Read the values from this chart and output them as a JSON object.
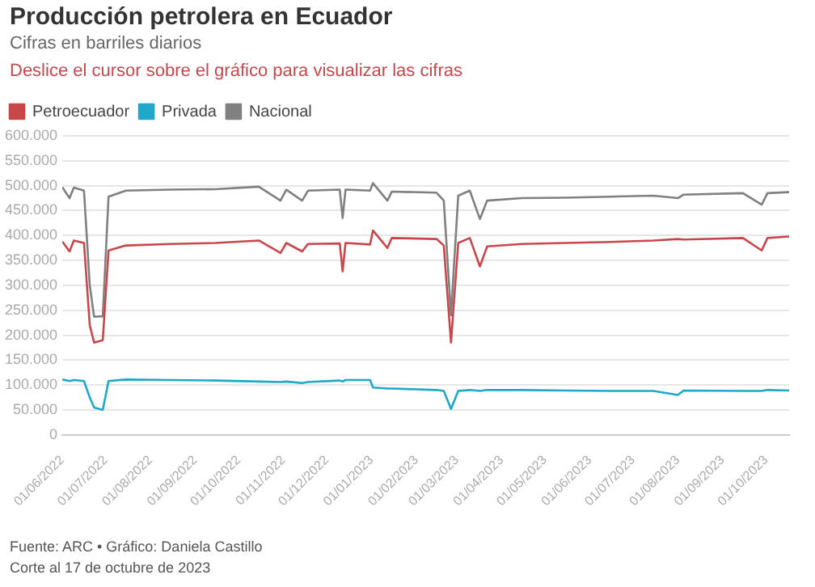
{
  "chart_data": {
    "type": "line",
    "title": "Producción petrolera en Ecuador",
    "subtitle": "Cifras en barriles diarios",
    "annotations": [
      "Deslice el cursor sobre el gráfico para visualizar las cifras",
      "Fuente: ARC • Gráfico: Daniela Castillo",
      "Corte al 17 de octubre de 2023"
    ],
    "x": [
      "2022-06-01",
      "2022-06-06",
      "2022-06-09",
      "2022-06-16",
      "2022-06-20",
      "2022-06-23",
      "2022-06-29",
      "2022-07-03",
      "2022-07-15",
      "2022-08-15",
      "2022-09-15",
      "2022-10-15",
      "2022-10-30",
      "2022-11-03",
      "2022-11-14",
      "2022-11-18",
      "2022-12-10",
      "2022-12-12",
      "2022-12-14",
      "2022-12-31",
      "2023-01-02",
      "2023-01-12",
      "2023-01-15",
      "2023-02-15",
      "2023-02-20",
      "2023-02-25",
      "2023-03-02",
      "2023-03-10",
      "2023-03-17",
      "2023-03-22",
      "2023-04-15",
      "2023-05-15",
      "2023-06-15",
      "2023-07-15",
      "2023-08-01",
      "2023-08-05",
      "2023-09-15",
      "2023-09-28",
      "2023-10-02",
      "2023-10-17"
    ],
    "series": [
      {
        "name": "Petroecuador",
        "color": "#c9474b",
        "values": [
          388000,
          368000,
          390000,
          385000,
          220000,
          185000,
          190000,
          370000,
          380000,
          383000,
          385000,
          390000,
          365000,
          385000,
          368000,
          383000,
          384000,
          328000,
          385000,
          382000,
          410000,
          375000,
          395000,
          393000,
          380000,
          185000,
          385000,
          395000,
          338000,
          378000,
          383000,
          385000,
          387000,
          390000,
          393000,
          392000,
          395000,
          370000,
          395000,
          398000
        ]
      },
      {
        "name": "Privada",
        "color": "#1fa8c9",
        "values": [
          111000,
          108000,
          110000,
          108000,
          75000,
          55000,
          50000,
          108000,
          111000,
          110000,
          109000,
          107000,
          106000,
          107000,
          104000,
          106000,
          109000,
          107000,
          110000,
          110000,
          95000,
          93000,
          93000,
          90000,
          88000,
          52000,
          88000,
          90000,
          88000,
          90000,
          90000,
          89000,
          88000,
          88000,
          80000,
          89000,
          88000,
          88000,
          90000,
          89000
        ]
      },
      {
        "name": "Nacional",
        "color": "#808080",
        "values": [
          497000,
          475000,
          496000,
          490000,
          300000,
          237000,
          238000,
          478000,
          490000,
          492000,
          493000,
          498000,
          470000,
          492000,
          470000,
          490000,
          492000,
          435000,
          492000,
          490000,
          505000,
          470000,
          488000,
          486000,
          470000,
          240000,
          480000,
          490000,
          433000,
          470000,
          475000,
          476000,
          478000,
          480000,
          475000,
          482000,
          485000,
          462000,
          485000,
          487000
        ]
      }
    ],
    "xlim": [
      "2022-06-01",
      "2023-10-17"
    ],
    "xticks": [
      {
        "value": "2022-06-01",
        "label": "01/06/2022"
      },
      {
        "value": "2022-07-01",
        "label": "01/07/2022"
      },
      {
        "value": "2022-08-01",
        "label": "01/08/2022"
      },
      {
        "value": "2022-09-01",
        "label": "01/09/2022"
      },
      {
        "value": "2022-10-01",
        "label": "01/10/2022"
      },
      {
        "value": "2022-11-01",
        "label": "01/11/2022"
      },
      {
        "value": "2022-12-01",
        "label": "01/12/2022"
      },
      {
        "value": "2023-01-01",
        "label": "01/01/2023"
      },
      {
        "value": "2023-02-01",
        "label": "01/02/2023"
      },
      {
        "value": "2023-03-01",
        "label": "01/03/2023"
      },
      {
        "value": "2023-04-01",
        "label": "01/04/2023"
      },
      {
        "value": "2023-05-01",
        "label": "01/05/2023"
      },
      {
        "value": "2023-06-01",
        "label": "01/06/2023"
      },
      {
        "value": "2023-07-01",
        "label": "01/07/2023"
      },
      {
        "value": "2023-08-01",
        "label": "01/08/2023"
      },
      {
        "value": "2023-09-01",
        "label": "01/09/2023"
      },
      {
        "value": "2023-10-01",
        "label": "01/10/2023"
      }
    ],
    "ylim": [
      0,
      600000
    ],
    "yticks": [
      0,
      {
        "value": 50000,
        "label": "50.000"
      },
      {
        "value": 100000,
        "label": "100.000"
      },
      {
        "value": 150000,
        "label": "150.000"
      },
      {
        "value": 200000,
        "label": "200.000"
      },
      {
        "value": 250000,
        "label": "250.000"
      },
      {
        "value": 300000,
        "label": "300.000"
      },
      {
        "value": 350000,
        "label": "350.000"
      },
      {
        "value": 400000,
        "label": "400.000"
      },
      {
        "value": 450000,
        "label": "450.000"
      },
      {
        "value": 500000,
        "label": "500.000"
      },
      {
        "value": 550000,
        "label": "550.000"
      },
      {
        "value": 600000,
        "label": "600.000"
      }
    ],
    "grid": "y",
    "legend": "top left",
    "marker": "none",
    "line_style": "solid"
  }
}
